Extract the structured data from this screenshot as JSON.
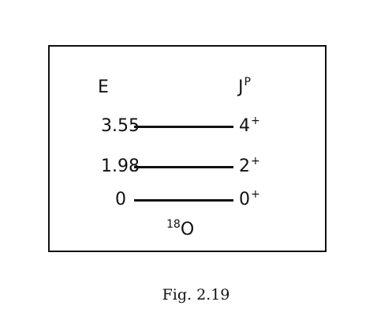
{
  "diagram": {
    "energy_header": "E",
    "spin_header_base": "J",
    "spin_header_sup": "P",
    "nucleus_mass": "18",
    "nucleus_symbol": "O",
    "levels": [
      {
        "energy": "3.55",
        "spin": "4",
        "parity": "+"
      },
      {
        "energy": "1.98",
        "spin": "2",
        "parity": "+"
      },
      {
        "energy": "0",
        "spin": "0",
        "parity": "+"
      }
    ]
  },
  "caption": "Fig. 2.19"
}
